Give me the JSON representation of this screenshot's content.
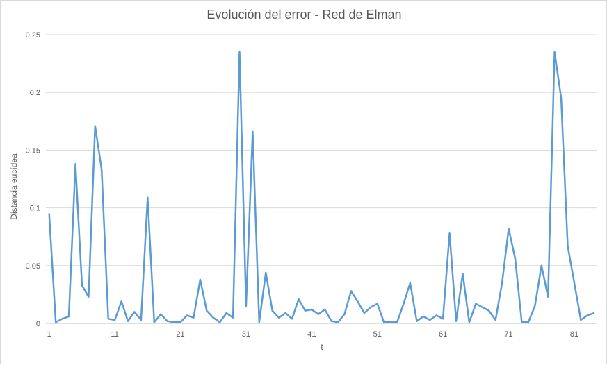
{
  "chart_data": {
    "type": "line",
    "title": "Evolución del error - Red de Elman",
    "xlabel": "t",
    "ylabel": "Distancia eucídea",
    "ylim": [
      0,
      0.25
    ],
    "yticks": [
      0,
      0.05,
      0.1,
      0.15,
      0.2,
      0.25
    ],
    "ytick_labels": [
      "0",
      "0.05",
      "0.1",
      "0.15",
      "0.2",
      "0.25"
    ],
    "xticks": [
      1,
      11,
      21,
      31,
      41,
      51,
      61,
      71,
      81
    ],
    "grid": true,
    "color": "#5b9bd5",
    "series": [
      {
        "x": [
          1,
          2,
          3,
          4,
          5,
          6,
          7,
          8,
          9,
          10,
          11,
          12,
          13,
          14,
          15,
          16,
          17,
          18,
          19,
          20,
          21,
          22,
          23,
          24,
          25,
          26,
          27,
          28,
          29,
          30,
          31,
          32,
          33,
          34,
          35,
          36,
          37,
          38,
          39,
          40,
          41,
          42,
          43,
          44,
          45,
          46,
          47,
          48,
          49,
          50,
          51,
          52,
          53,
          54,
          55,
          56,
          57,
          58,
          59,
          60,
          61,
          62,
          63,
          64,
          65,
          66,
          67,
          68,
          69,
          70,
          71,
          72,
          73,
          74,
          75,
          76,
          77,
          78,
          79,
          80,
          81,
          82,
          83,
          84
        ],
        "values": [
          0.095,
          0.001,
          0.004,
          0.006,
          0.138,
          0.033,
          0.023,
          0.171,
          0.133,
          0.004,
          0.003,
          0.019,
          0.002,
          0.01,
          0.003,
          0.109,
          0.001,
          0.008,
          0.002,
          0.001,
          0.001,
          0.007,
          0.005,
          0.038,
          0.011,
          0.005,
          0.001,
          0.009,
          0.005,
          0.235,
          0.015,
          0.166,
          0.001,
          0.044,
          0.011,
          0.005,
          0.009,
          0.004,
          0.021,
          0.011,
          0.012,
          0.008,
          0.012,
          0.002,
          0.001,
          0.008,
          0.028,
          0.019,
          0.009,
          0.014,
          0.017,
          0.001,
          0.001,
          0.001,
          0.017,
          0.035,
          0.002,
          0.006,
          0.003,
          0.007,
          0.004,
          0.078,
          0.002,
          0.043,
          0.001,
          0.017,
          0.014,
          0.011,
          0.003,
          0.035,
          0.082,
          0.056,
          0.001,
          0.001,
          0.015,
          0.05,
          0.023,
          0.235,
          0.195,
          0.067,
          0.035,
          0.003,
          0.007,
          0.009
        ]
      }
    ]
  }
}
